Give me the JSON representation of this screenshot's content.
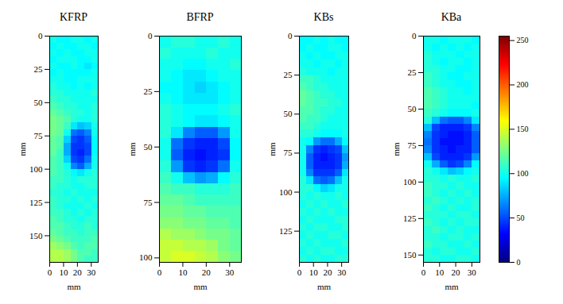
{
  "chart_data": [
    {
      "type": "heatmap",
      "title": "KFRP",
      "x_label": "mm",
      "y_label": "mm",
      "xlim": [
        0,
        35
      ],
      "xticks": [
        0,
        10,
        20,
        30
      ],
      "ylim": [
        0,
        170
      ],
      "yticks": [
        0,
        25,
        50,
        75,
        100,
        125,
        150
      ],
      "cells": [
        [
          100,
          95,
          95,
          100,
          100,
          95,
          100
        ],
        [
          95,
          100,
          95,
          95,
          100,
          100,
          95
        ],
        [
          100,
          95,
          100,
          95,
          95,
          100,
          100
        ],
        [
          95,
          100,
          100,
          100,
          95,
          95,
          100
        ],
        [
          100,
          95,
          95,
          100,
          95,
          90,
          95
        ],
        [
          95,
          100,
          95,
          95,
          95,
          95,
          100
        ],
        [
          100,
          100,
          95,
          95,
          100,
          100,
          100
        ],
        [
          105,
          100,
          100,
          95,
          100,
          95,
          100
        ],
        [
          105,
          105,
          100,
          100,
          100,
          100,
          105
        ],
        [
          110,
          105,
          105,
          100,
          100,
          100,
          100
        ],
        [
          115,
          110,
          105,
          105,
          100,
          100,
          105
        ],
        [
          120,
          115,
          110,
          105,
          105,
          100,
          105
        ],
        [
          125,
          120,
          115,
          105,
          100,
          100,
          105
        ],
        [
          125,
          120,
          110,
          90,
          80,
          85,
          100
        ],
        [
          125,
          120,
          100,
          60,
          55,
          65,
          100
        ],
        [
          120,
          115,
          85,
          50,
          45,
          55,
          95
        ],
        [
          120,
          115,
          75,
          45,
          45,
          50,
          95
        ],
        [
          120,
          110,
          75,
          45,
          40,
          50,
          95
        ],
        [
          115,
          110,
          85,
          50,
          45,
          60,
          100
        ],
        [
          115,
          110,
          100,
          65,
          55,
          75,
          100
        ],
        [
          115,
          110,
          105,
          95,
          90,
          100,
          105
        ],
        [
          110,
          110,
          105,
          100,
          105,
          105,
          105
        ],
        [
          110,
          105,
          105,
          100,
          100,
          105,
          105
        ],
        [
          105,
          105,
          100,
          105,
          100,
          100,
          100
        ],
        [
          110,
          105,
          105,
          100,
          105,
          100,
          105
        ],
        [
          110,
          105,
          100,
          100,
          100,
          105,
          100
        ],
        [
          110,
          110,
          105,
          100,
          105,
          100,
          105
        ],
        [
          115,
          110,
          105,
          105,
          100,
          105,
          105
        ],
        [
          115,
          115,
          110,
          105,
          105,
          110,
          105
        ],
        [
          120,
          115,
          110,
          110,
          105,
          110,
          110
        ],
        [
          125,
          120,
          115,
          110,
          110,
          110,
          115
        ],
        [
          135,
          130,
          125,
          115,
          110,
          115,
          115
        ],
        [
          140,
          140,
          135,
          125,
          115,
          115,
          110
        ],
        [
          140,
          140,
          135,
          125,
          115,
          110,
          110
        ]
      ]
    },
    {
      "type": "heatmap",
      "title": "BFRP",
      "x_label": "mm",
      "y_label": "mm",
      "xlim": [
        0,
        35
      ],
      "xticks": [
        0,
        10,
        20,
        30
      ],
      "ylim": [
        0,
        102
      ],
      "yticks": [
        0,
        25,
        50,
        75,
        100
      ],
      "cells": [
        [
          100,
          105,
          105,
          100,
          100,
          105,
          100
        ],
        [
          105,
          100,
          100,
          100,
          105,
          100,
          100
        ],
        [
          100,
          100,
          95,
          95,
          100,
          100,
          105
        ],
        [
          100,
          95,
          90,
          90,
          95,
          100,
          100
        ],
        [
          95,
          95,
          90,
          85,
          90,
          95,
          100
        ],
        [
          100,
          95,
          90,
          90,
          90,
          95,
          100
        ],
        [
          105,
          100,
          95,
          95,
          95,
          100,
          105
        ],
        [
          105,
          100,
          95,
          90,
          90,
          95,
          100
        ],
        [
          105,
          90,
          65,
          55,
          55,
          70,
          100
        ],
        [
          100,
          60,
          45,
          40,
          40,
          50,
          95
        ],
        [
          100,
          55,
          40,
          35,
          40,
          45,
          95
        ],
        [
          105,
          70,
          45,
          40,
          45,
          60,
          100
        ],
        [
          110,
          100,
          80,
          70,
          75,
          95,
          105
        ],
        [
          115,
          110,
          110,
          105,
          105,
          105,
          110
        ],
        [
          120,
          120,
          115,
          110,
          110,
          110,
          110
        ],
        [
          125,
          125,
          120,
          120,
          115,
          115,
          115
        ],
        [
          130,
          130,
          125,
          125,
          120,
          120,
          115
        ],
        [
          140,
          135,
          135,
          130,
          125,
          125,
          120
        ],
        [
          145,
          145,
          140,
          140,
          135,
          125,
          120
        ],
        [
          145,
          150,
          150,
          145,
          140,
          130,
          125
        ]
      ]
    },
    {
      "type": "heatmap",
      "title": "KBs",
      "x_label": "mm",
      "y_label": "mm",
      "xlim": [
        0,
        35
      ],
      "xticks": [
        0,
        10,
        20,
        30
      ],
      "ylim": [
        0,
        145
      ],
      "yticks": [
        0,
        25,
        50,
        75,
        100,
        125
      ],
      "cells": [
        [
          95,
          95,
          100,
          95,
          100,
          95,
          95
        ],
        [
          95,
          100,
          95,
          95,
          100,
          100,
          95
        ],
        [
          100,
          95,
          100,
          95,
          95,
          100,
          100
        ],
        [
          100,
          100,
          95,
          100,
          100,
          95,
          100
        ],
        [
          105,
          100,
          100,
          100,
          95,
          100,
          100
        ],
        [
          110,
          110,
          105,
          100,
          100,
          100,
          100
        ],
        [
          115,
          110,
          105,
          105,
          100,
          100,
          100
        ],
        [
          120,
          115,
          110,
          105,
          105,
          100,
          100
        ],
        [
          120,
          115,
          110,
          110,
          105,
          105,
          100
        ],
        [
          115,
          115,
          110,
          105,
          105,
          100,
          100
        ],
        [
          115,
          110,
          110,
          105,
          100,
          100,
          100
        ],
        [
          110,
          110,
          105,
          100,
          100,
          100,
          100
        ],
        [
          105,
          105,
          100,
          95,
          95,
          95,
          100
        ],
        [
          100,
          95,
          70,
          60,
          60,
          75,
          95
        ],
        [
          100,
          65,
          45,
          40,
          45,
          50,
          80
        ],
        [
          100,
          55,
          40,
          35,
          40,
          45,
          70
        ],
        [
          100,
          55,
          40,
          40,
          40,
          45,
          75
        ],
        [
          100,
          65,
          45,
          45,
          45,
          55,
          90
        ],
        [
          105,
          90,
          60,
          55,
          60,
          80,
          100
        ],
        [
          105,
          105,
          95,
          85,
          90,
          100,
          100
        ],
        [
          105,
          100,
          105,
          100,
          100,
          105,
          100
        ],
        [
          100,
          105,
          100,
          105,
          100,
          100,
          105
        ],
        [
          105,
          100,
          105,
          100,
          105,
          100,
          100
        ],
        [
          100,
          105,
          100,
          100,
          100,
          105,
          105
        ],
        [
          105,
          100,
          105,
          105,
          100,
          100,
          105
        ],
        [
          100,
          105,
          100,
          100,
          105,
          105,
          100
        ],
        [
          105,
          100,
          105,
          100,
          100,
          100,
          105
        ],
        [
          100,
          105,
          100,
          105,
          105,
          100,
          100
        ],
        [
          105,
          100,
          105,
          100,
          100,
          105,
          105
        ]
      ]
    },
    {
      "type": "heatmap",
      "title": "KBa",
      "x_label": "mm",
      "y_label": "mm",
      "xlim": [
        0,
        35
      ],
      "xticks": [
        0,
        10,
        20,
        30
      ],
      "ylim": [
        0,
        155
      ],
      "yticks": [
        0,
        25,
        50,
        75,
        100,
        125,
        150
      ],
      "cells": [
        [
          100,
          100,
          95,
          100,
          100,
          100,
          95
        ],
        [
          100,
          95,
          100,
          95,
          100,
          95,
          100
        ],
        [
          105,
          100,
          100,
          100,
          95,
          100,
          100
        ],
        [
          105,
          100,
          95,
          100,
          100,
          95,
          100
        ],
        [
          105,
          105,
          100,
          100,
          95,
          95,
          100
        ],
        [
          110,
          105,
          100,
          95,
          95,
          100,
          100
        ],
        [
          110,
          105,
          100,
          100,
          95,
          95,
          100
        ],
        [
          115,
          110,
          105,
          100,
          100,
          95,
          100
        ],
        [
          115,
          110,
          105,
          100,
          100,
          100,
          100
        ],
        [
          115,
          110,
          105,
          100,
          100,
          100,
          95
        ],
        [
          110,
          105,
          100,
          95,
          95,
          95,
          100
        ],
        [
          105,
          80,
          60,
          55,
          55,
          65,
          90
        ],
        [
          80,
          50,
          40,
          40,
          40,
          45,
          65
        ],
        [
          65,
          45,
          40,
          35,
          35,
          40,
          55
        ],
        [
          60,
          45,
          35,
          35,
          35,
          40,
          55
        ],
        [
          65,
          45,
          40,
          35,
          40,
          40,
          55
        ],
        [
          80,
          50,
          40,
          40,
          40,
          45,
          70
        ],
        [
          100,
          75,
          55,
          45,
          50,
          65,
          95
        ],
        [
          105,
          100,
          90,
          80,
          85,
          95,
          100
        ],
        [
          105,
          105,
          100,
          105,
          100,
          100,
          105
        ],
        [
          110,
          105,
          105,
          100,
          105,
          100,
          100
        ],
        [
          110,
          105,
          100,
          105,
          100,
          105,
          100
        ],
        [
          105,
          110,
          105,
          100,
          105,
          100,
          105
        ],
        [
          110,
          105,
          100,
          105,
          100,
          100,
          105
        ],
        [
          105,
          105,
          105,
          100,
          105,
          105,
          100
        ],
        [
          110,
          105,
          100,
          105,
          100,
          105,
          105
        ],
        [
          105,
          110,
          105,
          100,
          105,
          100,
          100
        ],
        [
          105,
          105,
          100,
          105,
          105,
          100,
          105
        ],
        [
          110,
          105,
          105,
          100,
          100,
          105,
          100
        ],
        [
          105,
          100,
          105,
          105,
          100,
          100,
          105
        ],
        [
          105,
          105,
          100,
          100,
          105,
          105,
          100
        ]
      ]
    }
  ],
  "colorbar": {
    "range": [
      0,
      255
    ],
    "ticks": [
      0,
      50,
      100,
      150,
      200,
      250
    ]
  }
}
